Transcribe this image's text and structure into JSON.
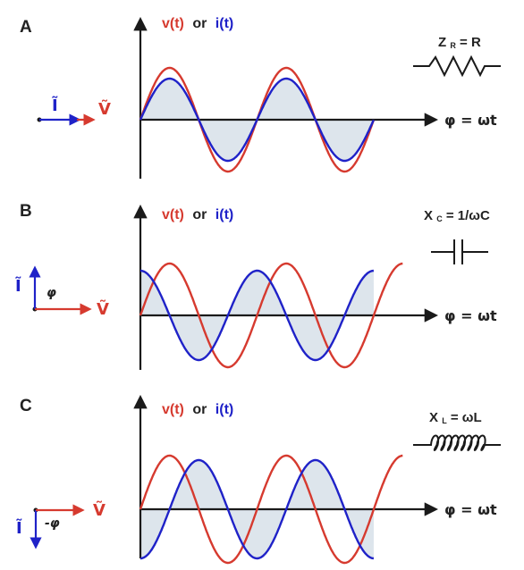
{
  "panels": [
    {
      "letter": "A",
      "title_v": "v(t)",
      "title_or": "or",
      "title_i": "i(t)",
      "axis_label": "φ = ωt",
      "element_main": "Z",
      "element_sub": "R",
      "element_rest": " = R",
      "phasor_i": "Ĩ",
      "phasor_v": "Ṽ",
      "phase_label": "",
      "element_icon": "resistor-icon"
    },
    {
      "letter": "B",
      "title_v": "v(t)",
      "title_or": "or",
      "title_i": "i(t)",
      "axis_label": "φ = ωt",
      "element_main": "X",
      "element_sub": "C",
      "element_rest": " = 1/ωC",
      "phasor_i": "Ĩ",
      "phasor_v": "Ṽ",
      "phase_label": "φ",
      "element_icon": "capacitor-icon"
    },
    {
      "letter": "C",
      "title_v": "v(t)",
      "title_or": "or",
      "title_i": "i(t)",
      "axis_label": "φ = ωt",
      "element_main": "X",
      "element_sub": "L",
      "element_rest": " = ωL",
      "phasor_i": "Ĩ",
      "phasor_v": "Ṽ",
      "phase_label": "-φ",
      "element_icon": "inductor-icon"
    }
  ],
  "colors": {
    "voltage": "#d63a2f",
    "current": "#1f22c8",
    "fill": "#dde5ec",
    "axis": "#1a1a1a"
  }
}
